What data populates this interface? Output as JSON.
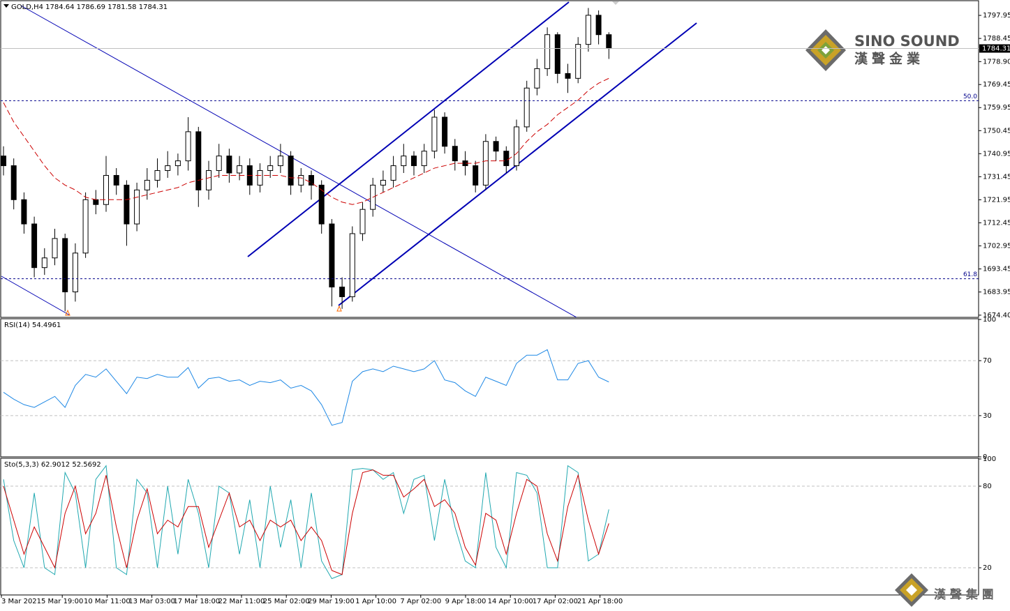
{
  "chart_data": [
    {
      "type": "candlestick",
      "title": "GOLD,H4  1784.64 1786.69 1781.58 1784.31",
      "xlabels": [
        "3 Mar 2021",
        "5 Mar 19:00",
        "10 Mar 11:00",
        "13 Mar 03:00",
        "17 Mar 18:00",
        "22 Mar 11:00",
        "25 Mar 02:00",
        "29 Mar 19:00",
        "1 Apr 10:00",
        "7 Apr 02:00",
        "9 Apr 18:00",
        "14 Apr 10:00",
        "17 Apr 02:00",
        "21 Apr 18:00"
      ],
      "open": [
        1740,
        1736,
        1722,
        1712,
        1694,
        1698,
        1706,
        1684,
        1700,
        1722,
        1720,
        1732,
        1728,
        1712,
        1726,
        1730,
        1734,
        1736,
        1738,
        1750,
        1726,
        1734,
        1740,
        1733,
        1736,
        1728,
        1734,
        1736,
        1740,
        1728,
        1732,
        1728,
        1712,
        1686,
        1682,
        1708,
        1718,
        1728,
        1730,
        1736,
        1740,
        1736,
        1742,
        1756,
        1744,
        1738,
        1736,
        1728,
        1746,
        1742,
        1736,
        1752,
        1768,
        1776,
        1790,
        1774,
        1772,
        1786,
        1798,
        1790
      ],
      "high": [
        1744,
        1739,
        1725,
        1715,
        1702,
        1710,
        1708,
        1704,
        1725,
        1726,
        1740,
        1735,
        1730,
        1729,
        1735,
        1739,
        1742,
        1741,
        1756,
        1752,
        1738,
        1745,
        1743,
        1740,
        1739,
        1737,
        1740,
        1745,
        1742,
        1735,
        1734,
        1730,
        1714,
        1690,
        1711,
        1721,
        1731,
        1734,
        1740,
        1745,
        1742,
        1745,
        1759,
        1758,
        1747,
        1742,
        1738,
        1749,
        1748,
        1744,
        1755,
        1771,
        1780,
        1793,
        1791,
        1778,
        1789,
        1801,
        1800,
        1791
      ],
      "low": [
        1732,
        1718,
        1708,
        1690,
        1691,
        1695,
        1676,
        1680,
        1698,
        1716,
        1717,
        1724,
        1703,
        1709,
        1722,
        1727,
        1731,
        1732,
        1734,
        1719,
        1722,
        1731,
        1729,
        1730,
        1724,
        1725,
        1731,
        1733,
        1724,
        1725,
        1722,
        1708,
        1678,
        1677,
        1680,
        1705,
        1715,
        1725,
        1727,
        1733,
        1732,
        1733,
        1739,
        1741,
        1734,
        1732,
        1725,
        1726,
        1738,
        1733,
        1734,
        1750,
        1765,
        1773,
        1770,
        1766,
        1770,
        1783,
        1786,
        1780
      ],
      "close": [
        1736,
        1722,
        1712,
        1694,
        1698,
        1706,
        1684,
        1700,
        1722,
        1720,
        1732,
        1728,
        1712,
        1726,
        1730,
        1734,
        1736,
        1738,
        1750,
        1726,
        1734,
        1740,
        1733,
        1736,
        1728,
        1734,
        1736,
        1740,
        1728,
        1732,
        1728,
        1712,
        1686,
        1682,
        1708,
        1718,
        1728,
        1730,
        1736,
        1740,
        1736,
        1742,
        1756,
        1744,
        1738,
        1736,
        1728,
        1746,
        1742,
        1736,
        1752,
        1768,
        1776,
        1790,
        1774,
        1772,
        1786,
        1798,
        1790,
        1784.31
      ],
      "up_color": "#ffffff",
      "down_color": "#000000",
      "ma": {
        "color": "#cc0000",
        "values": [
          1762,
          1754,
          1748,
          1742,
          1736,
          1731,
          1728,
          1726,
          1723,
          1722,
          1722,
          1722,
          1722,
          1723,
          1724,
          1725,
          1726,
          1727,
          1729,
          1730,
          1731,
          1732,
          1732,
          1732,
          1732,
          1732,
          1732,
          1732,
          1731,
          1731,
          1729,
          1726,
          1723,
          1721,
          1720,
          1721,
          1723,
          1725,
          1727,
          1729,
          1731,
          1733,
          1735,
          1736,
          1737,
          1737,
          1737,
          1738,
          1738,
          1738,
          1741,
          1746,
          1750,
          1753,
          1757,
          1760,
          1763,
          1767,
          1770,
          1772
        ]
      },
      "ylim": [
        1673.5,
        1804
      ],
      "yticks": [
        1797.95,
        1788.45,
        {
          "value": 1778.9,
          "label": "1778.90"
        },
        1769.45,
        1759.95,
        1750.45,
        1740.95,
        1731.45,
        1721.95,
        1712.45,
        1702.95,
        1693.45,
        1683.95,
        {
          "value": 1674.4,
          "label": "1674.40"
        }
      ],
      "grid": false,
      "last_price": 1784.31,
      "fib_levels": [
        {
          "label": "50.0",
          "price": 1762.8
        },
        {
          "label": "61.8",
          "price": 1689.4
        }
      ]
    },
    {
      "type": "line",
      "title": "RSI(14) 54.4961",
      "series": [
        {
          "color": "#1e88e5",
          "values": [
            47,
            42,
            38,
            36,
            40,
            44,
            36,
            52,
            60,
            58,
            64,
            55,
            46,
            58,
            57,
            60,
            58,
            58,
            65,
            50,
            57,
            58,
            55,
            56,
            52,
            55,
            54,
            56,
            50,
            52,
            48,
            38,
            23,
            25,
            55,
            62,
            64,
            62,
            66,
            64,
            62,
            64,
            70,
            56,
            54,
            48,
            44,
            58,
            55,
            52,
            68,
            74,
            74,
            78,
            56,
            56,
            68,
            70,
            58,
            54.5
          ]
        }
      ],
      "ylim": [
        0,
        100
      ],
      "yticks": [
        0,
        30,
        70,
        100
      ],
      "grid": true
    },
    {
      "type": "line",
      "title": "Sto(5,3,3) 62.9012 52.5692",
      "series": [
        {
          "color": "#20a8b0",
          "values": [
            85,
            40,
            20,
            75,
            20,
            15,
            90,
            75,
            20,
            85,
            95,
            20,
            15,
            85,
            75,
            20,
            80,
            30,
            85,
            60,
            20,
            80,
            75,
            30,
            70,
            20,
            80,
            35,
            70,
            20,
            75,
            25,
            12,
            15,
            92,
            93,
            92,
            85,
            90,
            60,
            85,
            88,
            40,
            85,
            50,
            25,
            20,
            90,
            35,
            20,
            90,
            88,
            75,
            20,
            20,
            95,
            90,
            25,
            30,
            62.9
          ]
        },
        {
          "color": "#cc0000",
          "values": [
            80,
            55,
            30,
            50,
            35,
            20,
            60,
            80,
            45,
            60,
            88,
            50,
            20,
            55,
            78,
            45,
            55,
            50,
            65,
            65,
            35,
            55,
            75,
            50,
            55,
            40,
            55,
            50,
            55,
            40,
            50,
            40,
            18,
            15,
            60,
            90,
            92,
            88,
            88,
            72,
            78,
            85,
            65,
            70,
            60,
            35,
            22,
            60,
            55,
            30,
            60,
            85,
            80,
            45,
            25,
            65,
            88,
            55,
            30,
            52.6
          ]
        }
      ],
      "ylim": [
        0,
        100
      ],
      "yticks": [
        20,
        80,
        100
      ],
      "grid": true
    }
  ],
  "logo": {
    "name": "SINO SOUND",
    "chinese": "漢聲金業"
  },
  "footer_logo": "漢 聲 集 團"
}
